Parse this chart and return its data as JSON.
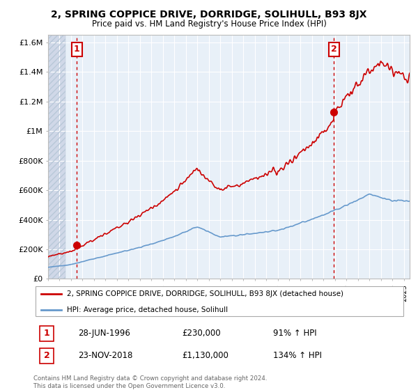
{
  "title": "2, SPRING COPPICE DRIVE, DORRIDGE, SOLIHULL, B93 8JX",
  "subtitle": "Price paid vs. HM Land Registry's House Price Index (HPI)",
  "legend_line1": "2, SPRING COPPICE DRIVE, DORRIDGE, SOLIHULL, B93 8JX (detached house)",
  "legend_line2": "HPI: Average price, detached house, Solihull",
  "annotation1_date": "28-JUN-1996",
  "annotation1_price": "£230,000",
  "annotation1_hpi": "91% ↑ HPI",
  "annotation2_date": "23-NOV-2018",
  "annotation2_price": "£1,130,000",
  "annotation2_hpi": "134% ↑ HPI",
  "footnote": "Contains HM Land Registry data © Crown copyright and database right 2024.\nThis data is licensed under the Open Government Licence v3.0.",
  "sale1_year": 1996.5,
  "sale1_value": 230000,
  "sale2_year": 2018.9,
  "sale2_value": 1130000,
  "xmin": 1994,
  "xmax": 2025.5,
  "ymin": 0,
  "ymax": 1650000,
  "hatch_end_year": 1995.5,
  "red_line_color": "#cc0000",
  "blue_line_color": "#6699cc",
  "background_plot": "#e8f0f8",
  "background_hatch": "#d0d8e8",
  "grid_color": "#cccccc",
  "dashed_line_color": "#cc0000"
}
